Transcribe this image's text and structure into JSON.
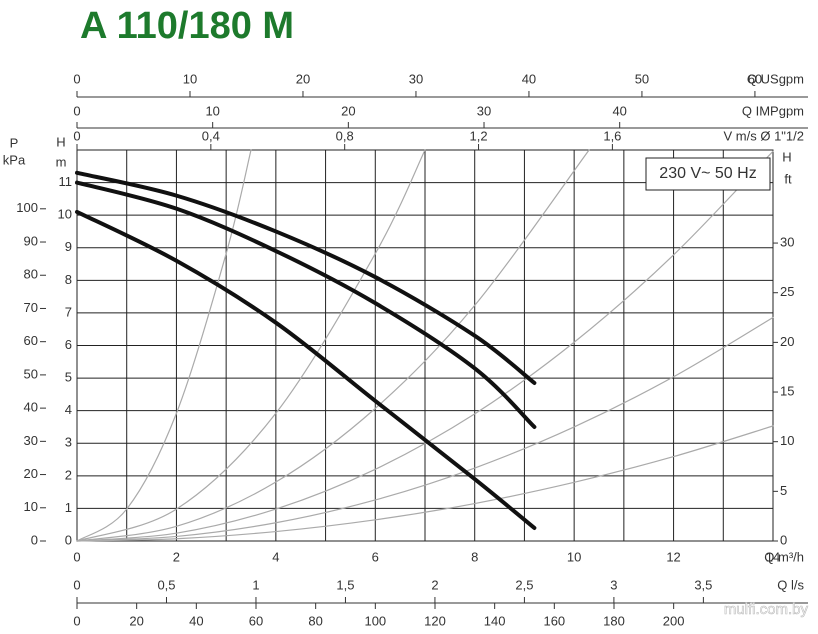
{
  "chart_data": {
    "type": "line",
    "title": "A 110/180 M",
    "annotation": "230 V~ 50 Hz",
    "watermark": "mulfi.com.by",
    "x_label": "Q m³/h",
    "xlim": [
      0,
      14
    ],
    "xticks": [
      0,
      2,
      4,
      6,
      8,
      10,
      12,
      14
    ],
    "y_label": "H",
    "y_unit": "m",
    "ylim": [
      0,
      12
    ],
    "yticks": [
      0,
      1,
      2,
      3,
      4,
      5,
      6,
      7,
      8,
      9,
      10,
      11
    ],
    "grid": true,
    "y_kpa": {
      "label": "P",
      "unit": "kPa",
      "lim": [
        0,
        117.7
      ],
      "ticks": [
        0,
        10,
        20,
        30,
        40,
        50,
        60,
        70,
        80,
        90,
        100
      ]
    },
    "y_ft": {
      "label": "H",
      "unit": "ft",
      "lim": [
        0,
        39.37
      ],
      "ticks": [
        0,
        5,
        10,
        15,
        20,
        25,
        30
      ]
    },
    "top_axes": [
      {
        "label": "Q USgpm",
        "lim": [
          0,
          61.6
        ],
        "ticks": [
          0,
          10,
          20,
          30,
          40,
          50,
          60
        ]
      },
      {
        "label": "Q IMPgpm",
        "lim": [
          0,
          51.3
        ],
        "ticks": [
          0,
          10,
          20,
          30,
          40
        ]
      },
      {
        "label": "V m/s Ø 1\"1/2",
        "lim": [
          0,
          2.08
        ],
        "ticks": [
          0,
          {
            "value": 0.4,
            "label": "0,4"
          },
          {
            "value": 0.8,
            "label": "0,8"
          },
          {
            "value": 1.2,
            "label": "1,2"
          },
          {
            "value": 1.6,
            "label": "1,6"
          }
        ]
      }
    ],
    "bottom_axes": [
      {
        "label": "Q l/s",
        "lim": [
          0,
          3.889
        ],
        "ticks": [
          0,
          {
            "value": 0.5,
            "label": "0,5"
          },
          1,
          {
            "value": 1.5,
            "label": "1,5"
          },
          2,
          {
            "value": 2.5,
            "label": "2,5"
          },
          3,
          {
            "value": 3.5,
            "label": "3,5"
          }
        ]
      },
      {
        "lim": [
          0,
          233.3
        ],
        "ticks": [
          0,
          20,
          40,
          60,
          80,
          100,
          120,
          140,
          160,
          180,
          200
        ]
      }
    ],
    "series": [
      {
        "color": "#111111",
        "x": [
          0,
          2,
          4,
          6,
          8,
          9.2
        ],
        "values": [
          11.3,
          10.6,
          9.5,
          8.1,
          6.3,
          4.85
        ]
      },
      {
        "color": "#111111",
        "x": [
          0,
          2,
          4,
          6,
          8,
          9.2
        ],
        "values": [
          11.0,
          10.2,
          8.9,
          7.3,
          5.3,
          3.5
        ]
      },
      {
        "color": "#111111",
        "x": [
          0,
          2,
          4,
          6,
          8,
          9.2
        ],
        "values": [
          10.1,
          8.6,
          6.7,
          4.3,
          1.9,
          0.4
        ]
      }
    ],
    "system_curves": [
      {
        "color": "#aaaaaa",
        "x": [
          0,
          1,
          2,
          3,
          3.5
        ],
        "values": [
          0,
          0.98,
          3.92,
          8.82,
          12.0
        ]
      },
      {
        "color": "#aaaaaa",
        "x": [
          0,
          2,
          4,
          6,
          7
        ],
        "values": [
          0,
          0.98,
          3.92,
          8.82,
          12.0
        ]
      },
      {
        "color": "#aaaaaa",
        "x": [
          0,
          2,
          4,
          6,
          8,
          10.3
        ],
        "values": [
          0,
          0.45,
          1.81,
          4.07,
          7.23,
          12.0
        ]
      },
      {
        "color": "#aaaaaa",
        "x": [
          0,
          2,
          4,
          6,
          8,
          10,
          12,
          14
        ],
        "values": [
          0,
          0.24,
          0.98,
          2.2,
          3.9,
          6.1,
          8.78,
          11.96
        ]
      },
      {
        "color": "#aaaaaa",
        "x": [
          0,
          2,
          4,
          6,
          8,
          10,
          12,
          14
        ],
        "values": [
          0,
          0.14,
          0.56,
          1.26,
          2.24,
          3.5,
          5.04,
          6.86
        ]
      },
      {
        "color": "#aaaaaa",
        "x": [
          0,
          2,
          4,
          6,
          8,
          10,
          12,
          14
        ],
        "values": [
          0,
          0.07,
          0.29,
          0.65,
          1.15,
          1.8,
          2.59,
          3.53
        ]
      }
    ]
  }
}
